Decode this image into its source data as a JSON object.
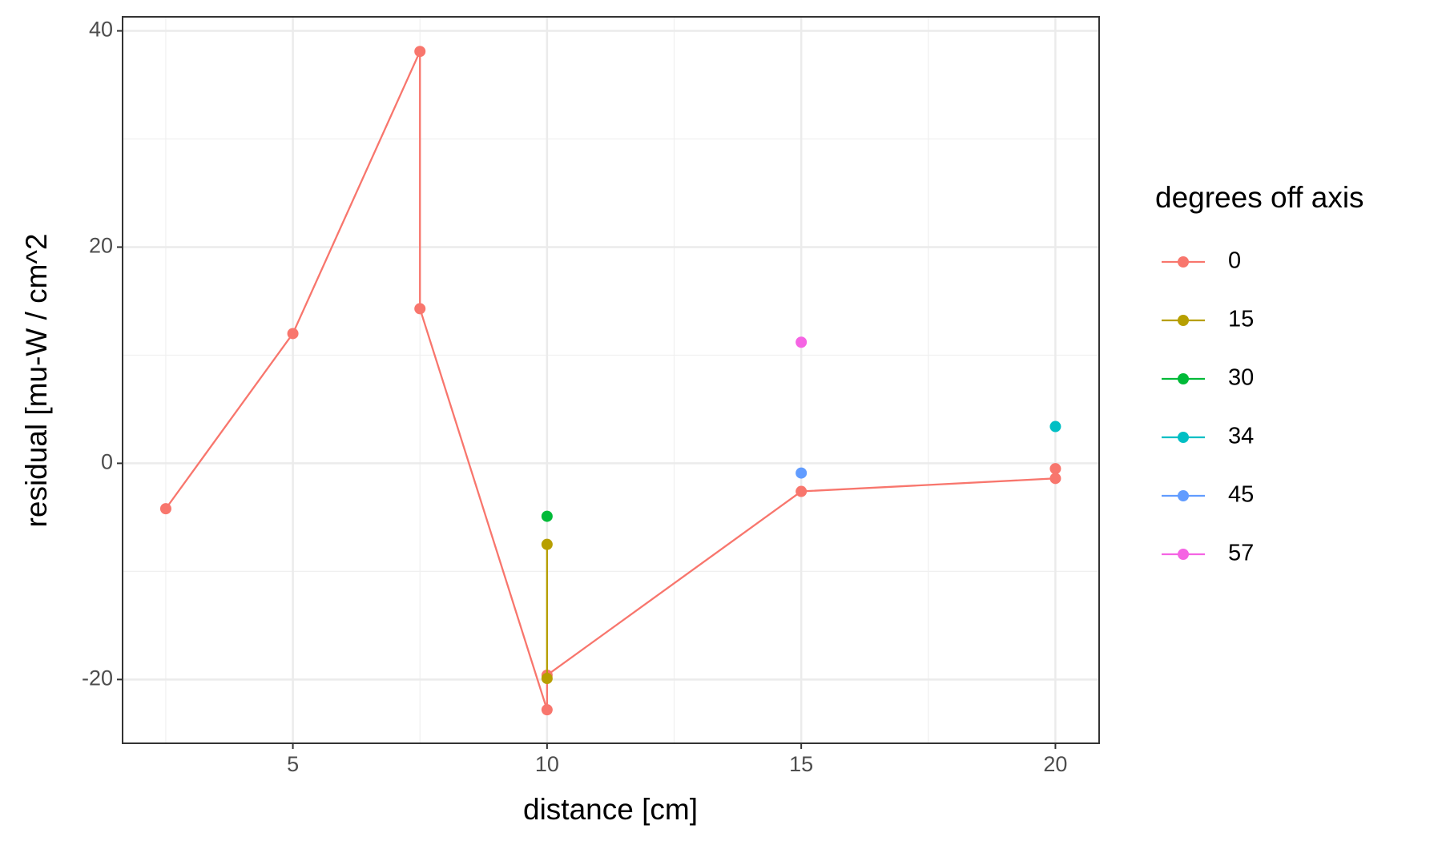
{
  "chart_data": {
    "type": "line",
    "x_label": "distance [cm]",
    "y_label": "residual [mu-W / cm^2",
    "legend_title": "degrees off axis",
    "legend_position": "right",
    "grid": true,
    "xlim": [
      1.65,
      20.86
    ],
    "ylim": [
      -25.9,
      41.3
    ],
    "xticks": [
      5,
      10,
      15,
      20
    ],
    "yticks": [
      -20,
      0,
      20,
      40
    ],
    "x_minor_grid": [
      2.5,
      7.5,
      12.5,
      17.5
    ],
    "y_minor_grid": [
      -10,
      10,
      30
    ],
    "series": [
      {
        "name": "0",
        "color": "#F8766D",
        "x": [
          2.5,
          5,
          7.5,
          7.5,
          10,
          10,
          15,
          20,
          20
        ],
        "values": [
          -4.2,
          12,
          38.1,
          14.3,
          -22.8,
          -19.6,
          -2.6,
          -1.4,
          -0.5
        ]
      },
      {
        "name": "15",
        "color": "#B79F00",
        "x": [
          10,
          10
        ],
        "values": [
          -7.5,
          -19.9
        ]
      },
      {
        "name": "30",
        "color": "#00BA38",
        "x": [
          10
        ],
        "values": [
          -4.9
        ]
      },
      {
        "name": "34",
        "color": "#00BFC4",
        "x": [
          20
        ],
        "values": [
          3.4
        ]
      },
      {
        "name": "45",
        "color": "#619CFF",
        "x": [
          15
        ],
        "values": [
          -0.9
        ]
      },
      {
        "name": "57",
        "color": "#F564E3",
        "x": [
          15
        ],
        "values": [
          11.2
        ]
      }
    ]
  }
}
